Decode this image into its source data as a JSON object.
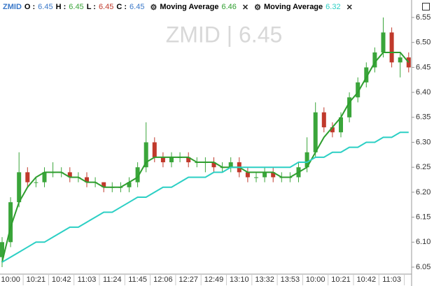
{
  "header": {
    "symbol": "ZMID",
    "ohlc": [
      {
        "label": "O :",
        "value": 6.45
      },
      {
        "label": "H :",
        "value": 6.45
      },
      {
        "label": "L :",
        "value": 6.45
      },
      {
        "label": "C :",
        "value": 6.45
      }
    ]
  },
  "chart_data": {
    "type": "candlestick",
    "watermark": "ZMID  |  6.45",
    "categories": [
      null,
      "10:00",
      null,
      null,
      "10:21",
      null,
      null,
      "10:42",
      null,
      null,
      "11:03",
      null,
      null,
      "11:24",
      null,
      null,
      "11:45",
      null,
      null,
      "12:06",
      null,
      null,
      "12:27",
      null,
      null,
      "12:49",
      null,
      null,
      "13:10",
      null,
      null,
      "13:32",
      null,
      null,
      "13:53",
      null,
      null,
      "10:00",
      null,
      null,
      "10:21",
      null,
      null,
      "10:42",
      null,
      null,
      "11:03",
      null,
      null
    ],
    "open": [
      6.07,
      6.1,
      6.18,
      6.24,
      6.22,
      6.22,
      6.24,
      6.24,
      6.24,
      6.23,
      6.23,
      6.22,
      6.22,
      6.21,
      6.21,
      6.21,
      6.22,
      6.25,
      6.3,
      6.27,
      6.26,
      6.27,
      6.27,
      6.26,
      6.26,
      6.26,
      6.25,
      6.25,
      6.26,
      6.24,
      6.23,
      6.23,
      6.24,
      6.23,
      6.23,
      6.23,
      6.25,
      6.28,
      6.36,
      6.33,
      6.32,
      6.35,
      6.39,
      6.42,
      6.45,
      6.48,
      6.52,
      6.46,
      6.47
    ],
    "high": [
      6.11,
      6.19,
      6.28,
      6.25,
      6.23,
      6.25,
      6.26,
      6.25,
      6.25,
      6.24,
      6.24,
      6.23,
      6.22,
      6.22,
      6.22,
      6.23,
      6.26,
      6.34,
      6.31,
      6.28,
      6.28,
      6.28,
      6.28,
      6.27,
      6.27,
      6.27,
      6.26,
      6.27,
      6.27,
      6.25,
      6.24,
      6.25,
      6.25,
      6.24,
      6.24,
      6.26,
      6.31,
      6.38,
      6.37,
      6.34,
      6.36,
      6.4,
      6.43,
      6.46,
      6.49,
      6.55,
      6.53,
      6.48,
      6.48
    ],
    "low": [
      6.05,
      6.09,
      6.17,
      6.21,
      6.21,
      6.21,
      6.23,
      6.23,
      6.22,
      6.22,
      6.21,
      6.21,
      6.2,
      6.2,
      6.2,
      6.2,
      6.21,
      6.24,
      6.26,
      6.25,
      6.25,
      6.26,
      6.25,
      6.25,
      6.24,
      6.24,
      6.24,
      6.24,
      6.23,
      6.22,
      6.22,
      6.22,
      6.22,
      6.22,
      6.22,
      6.22,
      6.24,
      6.27,
      6.32,
      6.31,
      6.31,
      6.34,
      6.38,
      6.41,
      6.44,
      6.47,
      6.45,
      6.43,
      6.44
    ],
    "close": [
      6.1,
      6.18,
      6.24,
      6.22,
      6.22,
      6.24,
      6.24,
      6.24,
      6.23,
      6.23,
      6.22,
      6.22,
      6.21,
      6.21,
      6.21,
      6.22,
      6.25,
      6.3,
      6.27,
      6.26,
      6.27,
      6.27,
      6.26,
      6.26,
      6.26,
      6.25,
      6.25,
      6.26,
      6.24,
      6.23,
      6.23,
      6.24,
      6.23,
      6.23,
      6.23,
      6.25,
      6.28,
      6.36,
      6.33,
      6.32,
      6.35,
      6.39,
      6.42,
      6.45,
      6.48,
      6.52,
      6.46,
      6.47,
      6.45
    ],
    "up_color": "#3aa53a",
    "down_color": "#c0392b",
    "series": [
      {
        "name": "Moving Average",
        "color": "#2e9e2e",
        "values": [
          6.06,
          6.13,
          6.18,
          6.21,
          6.23,
          6.24,
          6.24,
          6.24,
          6.23,
          6.23,
          6.22,
          6.22,
          6.21,
          6.21,
          6.21,
          6.22,
          6.23,
          6.26,
          6.27,
          6.27,
          6.27,
          6.27,
          6.27,
          6.26,
          6.26,
          6.26,
          6.25,
          6.25,
          6.25,
          6.24,
          6.24,
          6.24,
          6.24,
          6.23,
          6.23,
          6.24,
          6.25,
          6.28,
          6.31,
          6.33,
          6.35,
          6.38,
          6.4,
          6.43,
          6.46,
          6.48,
          6.48,
          6.48,
          6.46
        ]
      },
      {
        "name": "Moving Average",
        "color": "#2bcfc4",
        "values": [
          6.06,
          6.07,
          6.08,
          6.09,
          6.1,
          6.1,
          6.11,
          6.12,
          6.13,
          6.13,
          6.14,
          6.15,
          6.16,
          6.16,
          6.17,
          6.18,
          6.19,
          6.19,
          6.2,
          6.21,
          6.21,
          6.22,
          6.23,
          6.23,
          6.23,
          6.24,
          6.24,
          6.25,
          6.25,
          6.25,
          6.25,
          6.25,
          6.25,
          6.25,
          6.25,
          6.26,
          6.26,
          6.27,
          6.27,
          6.28,
          6.28,
          6.29,
          6.29,
          6.3,
          6.3,
          6.31,
          6.31,
          6.32,
          6.32
        ]
      }
    ],
    "ylim": [
      6.036,
      6.585
    ],
    "yticks": [
      6.05,
      {
        "value": 6.1,
        "label": "6.10"
      },
      6.15,
      {
        "value": 6.2,
        "label": "6.20"
      },
      6.25,
      {
        "value": 6.3,
        "label": "6.30"
      },
      6.35,
      {
        "value": 6.4,
        "label": "6.40"
      },
      6.45,
      {
        "value": 6.5,
        "label": "6.50"
      },
      6.55
    ]
  }
}
